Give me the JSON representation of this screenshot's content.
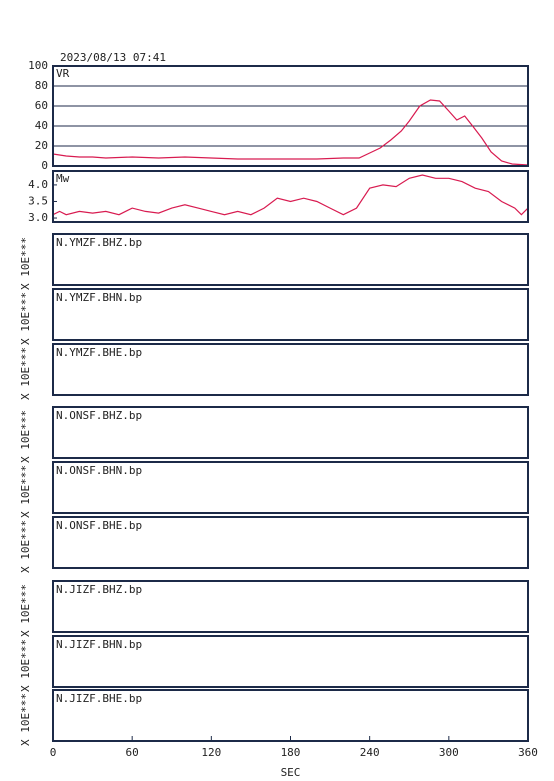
{
  "header": {
    "timestamp": "2023/08/13 07:41"
  },
  "chart_data": [
    {
      "type": "line",
      "label": "VR",
      "color": "#d81b50",
      "grid": true,
      "xlim": [
        0,
        360
      ],
      "ylim": [
        0,
        100
      ],
      "yticks": [
        0,
        20,
        40,
        60,
        80,
        100
      ],
      "x": [
        0,
        10,
        20,
        30,
        40,
        60,
        80,
        100,
        120,
        140,
        160,
        180,
        200,
        220,
        232,
        240,
        248,
        256,
        264,
        270,
        278,
        286,
        293,
        300,
        306,
        312,
        318,
        325,
        332,
        340,
        348,
        360
      ],
      "values": [
        12,
        10,
        9,
        9,
        8,
        9,
        8,
        9,
        8,
        7,
        7,
        7,
        7,
        8,
        8,
        13,
        18,
        26,
        35,
        45,
        60,
        66,
        65,
        55,
        46,
        50,
        40,
        28,
        14,
        5,
        2,
        1
      ]
    },
    {
      "type": "line",
      "label": "Mw",
      "color": "#d81b50",
      "grid": false,
      "xlim": [
        0,
        360
      ],
      "ylim": [
        2.88,
        4.42
      ],
      "yticks": [
        {
          "value": 3,
          "label": "3.0"
        },
        {
          "value": 3.5,
          "label": "3.5"
        },
        {
          "value": 4,
          "label": "4.0"
        }
      ],
      "x": [
        0,
        5,
        10,
        20,
        30,
        40,
        50,
        60,
        70,
        80,
        90,
        100,
        110,
        120,
        130,
        140,
        150,
        160,
        170,
        180,
        190,
        200,
        210,
        220,
        230,
        240,
        250,
        260,
        270,
        280,
        290,
        300,
        310,
        320,
        330,
        340,
        350,
        355,
        360
      ],
      "values": [
        3.1,
        3.2,
        3.1,
        3.2,
        3.15,
        3.2,
        3.1,
        3.3,
        3.2,
        3.15,
        3.3,
        3.4,
        3.3,
        3.2,
        3.1,
        3.2,
        3.1,
        3.3,
        3.6,
        3.5,
        3.6,
        3.5,
        3.3,
        3.1,
        3.3,
        3.9,
        4.0,
        3.95,
        4.2,
        4.3,
        4.2,
        4.2,
        4.1,
        3.9,
        3.8,
        3.5,
        3.3,
        3.1,
        3.3
      ]
    }
  ],
  "traces": {
    "ylabel": "X 10E***",
    "panels": [
      "N.YMZF.BHZ.bp",
      "N.YMZF.BHN.bp",
      "N.YMZF.BHE.bp",
      "N.ONSF.BHZ.bp",
      "N.ONSF.BHN.bp",
      "N.ONSF.BHE.bp",
      "N.JIZF.BHZ.bp",
      "N.JIZF.BHN.bp",
      "N.JIZF.BHE.bp"
    ]
  },
  "time_axis": {
    "xlim": [
      0,
      360
    ],
    "xticks": [
      0,
      60,
      120,
      180,
      240,
      300,
      360
    ],
    "xlabel": "SEC"
  }
}
